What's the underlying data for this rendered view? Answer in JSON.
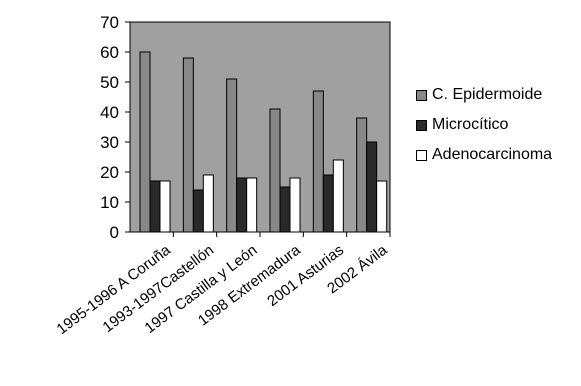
{
  "chart_data": {
    "type": "bar",
    "categories": [
      "1995-1996 A Coruña",
      "1993-1997Castellón",
      "1997 Castilla y León",
      "1998 Extremadura",
      "2001 Asturias",
      "2002 Ávila"
    ],
    "series": [
      {
        "name": "C. Epidermoide",
        "values": [
          60,
          58,
          51,
          41,
          47,
          38
        ],
        "color": "#888888"
      },
      {
        "name": "Microcítico",
        "values": [
          17,
          14,
          18,
          15,
          19,
          30
        ],
        "color": "#2a2a2a"
      },
      {
        "name": "Adenocarcinoma",
        "values": [
          17,
          19,
          18,
          18,
          24,
          17
        ],
        "color": "#ffffff"
      }
    ],
    "ylim": [
      0,
      70
    ],
    "yticks": [
      0,
      10,
      20,
      30,
      40,
      50,
      60,
      70
    ],
    "title": "",
    "xlabel": "",
    "ylabel": "",
    "plot_background": "#a0a0a0",
    "grid": false,
    "legend_position": "right"
  }
}
